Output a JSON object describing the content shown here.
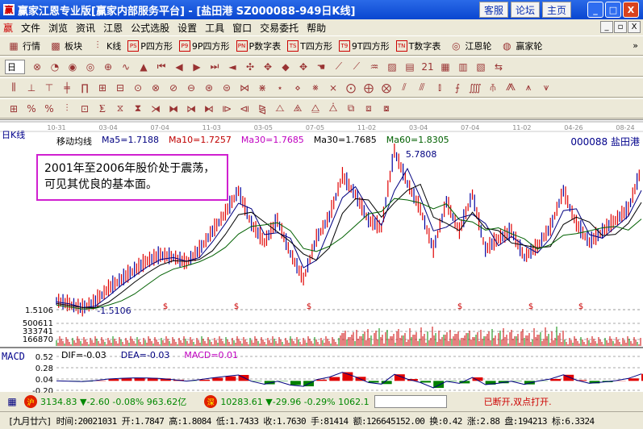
{
  "window": {
    "title": "赢家江恩专业版[赢家内部服务平台] - [盐田港    SZ000088-949日K线]",
    "buttons": [
      "客服",
      "论坛",
      "主页"
    ],
    "controls": [
      "_",
      "□",
      "X"
    ]
  },
  "menu": {
    "logo": "赢",
    "items": [
      "文件",
      "浏览",
      "资讯",
      "江恩",
      "公式选股",
      "设置",
      "工具",
      "窗口",
      "交易委托",
      "帮助"
    ],
    "mdi": [
      "_",
      "▫",
      "X"
    ]
  },
  "toolbar1": {
    "items": [
      {
        "icon": "grid-icon",
        "glyph": "▦",
        "label": "行情"
      },
      {
        "icon": "blocks-icon",
        "glyph": "▩",
        "label": "板块"
      },
      {
        "icon": "kline-icon",
        "glyph": "⫶",
        "label": "K线"
      },
      {
        "icon": "PS",
        "glyph": "PS",
        "label": "P四方形"
      },
      {
        "icon": "P9",
        "glyph": "P9",
        "label": "9P四方形"
      },
      {
        "icon": "PN",
        "glyph": "PN",
        "label": "P数字表"
      },
      {
        "icon": "TS",
        "glyph": "TS",
        "label": "T四方形"
      },
      {
        "icon": "T9",
        "glyph": "T9",
        "label": "9T四方形"
      },
      {
        "icon": "TN",
        "glyph": "TN",
        "label": "T数字表"
      },
      {
        "icon": "gann-wheel-icon",
        "glyph": "◎",
        "label": "江恩轮"
      },
      {
        "icon": "winner-wheel-icon",
        "glyph": "◍",
        "label": "赢家轮"
      }
    ],
    "more": "»"
  },
  "toolbar2": {
    "period": "日",
    "glyphs": [
      "⊗",
      "◔",
      "◉",
      "◎",
      "⊕",
      "∿",
      "▲",
      "⏮",
      "◀",
      "▶",
      "⏭",
      "◄",
      "✣",
      "✥",
      "◆",
      "✥",
      "☚",
      "⟋",
      "⟋",
      "♒",
      "▨",
      "▤",
      "21",
      "▦",
      "▥",
      "▧",
      "⇆"
    ]
  },
  "toolbar3": {
    "glyphs": [
      "⫼",
      "⊥",
      "⊤",
      "╪",
      "∏",
      "⊞",
      "⊟",
      "⊙",
      "⊗",
      "⊘",
      "⊖",
      "⊛",
      "⊜",
      "⋈",
      "⋇",
      "⋆",
      "⋄",
      "⨳",
      "⨯",
      "⨀",
      "⨁",
      "⨂",
      "⫽",
      "⫻",
      "⫾",
      "⨍",
      "⨌",
      "⫚",
      "⨇",
      "⩚",
      "⩛"
    ]
  },
  "toolbar4": {
    "glyphs": [
      "⊞",
      "%",
      "%",
      "⫶",
      "⊡",
      "⨊",
      "⧖",
      "⧗",
      "⧕",
      "⧓",
      "⧒",
      "⧑",
      "⧐",
      "⧏",
      "⧎",
      "⧍",
      "⧌",
      "⧋",
      "⧊",
      "⧉",
      "⧈",
      "⧇"
    ]
  },
  "chart": {
    "period_label": "日K线",
    "indicator_name": "移动均线",
    "ma": [
      {
        "label": "Ma5=1.7188",
        "color": "#000080"
      },
      {
        "label": "Ma10=1.7257",
        "color": "#c00000"
      },
      {
        "label": "Ma30=1.7685",
        "color": "#c000c0"
      },
      {
        "label": "Ma30=1.7685",
        "color": "#000000"
      },
      {
        "label": "Ma60=1.8305",
        "color": "#006000"
      }
    ],
    "stock": "000088 盐田港",
    "annotation": [
      "2001年至2006年股价处于震荡，",
      "可见其优良的基本面。"
    ],
    "high_label": "5.7808",
    "low_label": "1.5106",
    "low_axis": "1.5106",
    "volume_axis": [
      "500611",
      "333741",
      "166870"
    ],
    "macd": {
      "name": "MACD",
      "dif": "DIF=-0.03",
      "dea": "DEA=-0.03",
      "macd": "MACD=0.01",
      "axis": [
        "0.52",
        "0.28",
        "0.04",
        "-0.20"
      ]
    },
    "dividend_marker": "$"
  },
  "chart_data": {
    "type": "line",
    "categories": [
      "10-31",
      "03-04",
      "07-04",
      "11-03",
      "03-05",
      "07-05",
      "11-02",
      "03-04",
      "07-04",
      "11-02",
      "04-26",
      "08-24"
    ],
    "price_range": [
      1.5106,
      5.7808
    ],
    "price": [
      1.72,
      1.62,
      1.51,
      1.7,
      2.05,
      2.3,
      2.55,
      2.8,
      2.95,
      2.9,
      2.75,
      3.1,
      3.6,
      4.1,
      4.7,
      3.8,
      3.3,
      3.9,
      3.0,
      2.3,
      3.4,
      4.0,
      5.1,
      4.6,
      3.9,
      3.7,
      5.78,
      4.9,
      4.2,
      3.1,
      4.4,
      3.6,
      4.6,
      3.1,
      3.4,
      3.6,
      2.9,
      3.2,
      3.7,
      4.7,
      3.8,
      3.3,
      3.6,
      3.9,
      4.2,
      5.3
    ],
    "macd_range": [
      -0.2,
      0.52
    ]
  },
  "status": {
    "sh_badge": "沪",
    "sh": "3134.83 ▼-2.60 -0.08% 963.62亿",
    "sz_badge": "深",
    "sz": "10283.61 ▼-29.96 -0.29% 1062.1",
    "conn": "已断开,双点打开."
  },
  "info": "[九月廿六] 时间:20021031 开:1.7847 高:1.8084 低:1.7433 收:1.7630 手:81414 额:126645152.00 换:0.42 涨:2.88 盘:194213 标:6.3324",
  "colors": {
    "up": "#e00000",
    "down": "#008000",
    "title": "#0a46d0"
  }
}
